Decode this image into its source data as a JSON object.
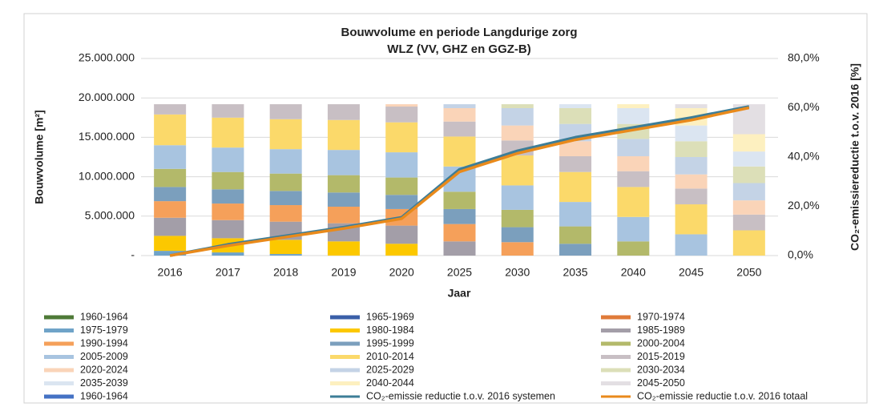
{
  "chart_data": {
    "type": "bar",
    "title": "Bouwvolume en periode Langdurige zorg",
    "subtitle": "WLZ (VV, GHZ en GGZ-B)",
    "x_label": "Jaar",
    "y_label": "Bouwvolume [m²]",
    "y2_label": "CO₂-emissiereductie t.o.v. 2016 [%]",
    "categories": [
      "2016",
      "2017",
      "2018",
      "2019",
      "2020",
      "2025",
      "2030",
      "2035",
      "2040",
      "2045",
      "2050"
    ],
    "ylim": [
      0,
      25000000
    ],
    "yticks": [
      {
        "value": 0,
        "label": "-"
      },
      {
        "value": 5000000,
        "label": "5.000.000"
      },
      {
        "value": 10000000,
        "label": "10.000.000"
      },
      {
        "value": 15000000,
        "label": "15.000.000"
      },
      {
        "value": 20000000,
        "label": "20.000.000"
      },
      {
        "value": 25000000,
        "label": "25.000.000"
      }
    ],
    "y2lim": [
      0,
      80
    ],
    "y2ticks": [
      {
        "value": 0,
        "label": "0,0%"
      },
      {
        "value": 20,
        "label": "20,0%"
      },
      {
        "value": 40,
        "label": "40,0%"
      },
      {
        "value": 60,
        "label": "60,0%"
      },
      {
        "value": 80,
        "label": "80,0%"
      }
    ],
    "grid": true,
    "legend": "bottom",
    "series": [
      {
        "name": "1960-1964",
        "color": "#4e7a37",
        "values": [
          0,
          0,
          0,
          0,
          0,
          0,
          0,
          0,
          0,
          0,
          0
        ]
      },
      {
        "name": "1965-1969",
        "color": "#3a5fa8",
        "values": [
          0,
          0,
          0,
          0,
          0,
          0,
          0,
          0,
          0,
          0,
          0
        ]
      },
      {
        "name": "1970-1974",
        "color": "#e07b39",
        "values": [
          0,
          0,
          0,
          0,
          0,
          0,
          0,
          0,
          0,
          0,
          0
        ]
      },
      {
        "name": "1975-1979",
        "color": "#6fa3c8",
        "values": [
          600000,
          400000,
          200000,
          0,
          0,
          0,
          0,
          0,
          0,
          0,
          0
        ]
      },
      {
        "name": "1980-1984",
        "color": "#fcc800",
        "values": [
          1900000,
          1800000,
          1800000,
          1800000,
          1500000,
          0,
          0,
          0,
          0,
          0,
          0
        ]
      },
      {
        "name": "1985-1989",
        "color": "#a39ea8",
        "values": [
          2300000,
          2300000,
          2300000,
          2300000,
          2300000,
          1800000,
          0,
          0,
          0,
          0,
          0
        ]
      },
      {
        "name": "1990-1994",
        "color": "#f5a05a",
        "values": [
          2100000,
          2100000,
          2100000,
          2100000,
          2100000,
          2200000,
          1700000,
          0,
          0,
          0,
          0
        ]
      },
      {
        "name": "1995-1999",
        "color": "#7b9fbd",
        "values": [
          1800000,
          1800000,
          1800000,
          1800000,
          1800000,
          1900000,
          1900000,
          1500000,
          0,
          0,
          0
        ]
      },
      {
        "name": "2000-2004",
        "color": "#b3b96a",
        "values": [
          2300000,
          2200000,
          2200000,
          2200000,
          2200000,
          2200000,
          2200000,
          2200000,
          1800000,
          0,
          0
        ]
      },
      {
        "name": "2005-2009",
        "color": "#a8c4e0",
        "values": [
          3000000,
          3100000,
          3100000,
          3200000,
          3200000,
          3200000,
          3100000,
          3100000,
          3100000,
          2700000,
          0
        ]
      },
      {
        "name": "2010-2014",
        "color": "#fbd96a",
        "values": [
          3900000,
          3800000,
          3800000,
          3800000,
          3800000,
          3800000,
          3800000,
          3800000,
          3800000,
          3800000,
          3200000
        ]
      },
      {
        "name": "2015-2019",
        "color": "#c8bfc4",
        "values": [
          1300000,
          1700000,
          1900000,
          2000000,
          2000000,
          1900000,
          1900000,
          2000000,
          2000000,
          2000000,
          2000000
        ]
      },
      {
        "name": "2020-2024",
        "color": "#fad4b8",
        "values": [
          0,
          0,
          0,
          0,
          300000,
          1700000,
          1900000,
          1900000,
          1900000,
          1800000,
          1800000
        ]
      },
      {
        "name": "2025-2029",
        "color": "#c4d3e6",
        "values": [
          0,
          0,
          0,
          0,
          0,
          500000,
          2200000,
          2200000,
          2200000,
          2200000,
          2200000
        ]
      },
      {
        "name": "2030-2034",
        "color": "#dcdfb8",
        "values": [
          0,
          0,
          0,
          0,
          0,
          0,
          500000,
          2000000,
          1900000,
          2000000,
          2100000
        ]
      },
      {
        "name": "2035-2039",
        "color": "#dbe5f1",
        "values": [
          0,
          0,
          0,
          0,
          0,
          0,
          0,
          500000,
          2000000,
          2000000,
          1900000
        ]
      },
      {
        "name": "2040-2044",
        "color": "#fdf0c0",
        "values": [
          0,
          0,
          0,
          0,
          0,
          0,
          0,
          0,
          500000,
          2200000,
          2200000
        ]
      },
      {
        "name": "2045-2050",
        "color": "#e3dfe3",
        "values": [
          0,
          0,
          0,
          0,
          0,
          0,
          0,
          0,
          0,
          500000,
          3800000
        ]
      },
      {
        "name": "1960-1964",
        "color": "#4472c4",
        "values": [
          0,
          0,
          0,
          0,
          0,
          0,
          0,
          0,
          0,
          0,
          0
        ]
      },
      {
        "name": "CO₂-emissie reductie t.o.v. 2016 systemen",
        "color": "#3d7d97",
        "type": "line",
        "axis": "y2",
        "values": [
          0,
          4.5,
          8,
          11.5,
          15.5,
          35,
          42.5,
          48,
          52,
          56,
          60.5
        ]
      },
      {
        "name": "CO₂-emissie reductie t.o.v. 2016 totaal",
        "color": "#e98a1b",
        "type": "line",
        "axis": "y2",
        "values": [
          0,
          4,
          7.5,
          11,
          15,
          34,
          41.5,
          47,
          51,
          55,
          60
        ]
      }
    ]
  }
}
